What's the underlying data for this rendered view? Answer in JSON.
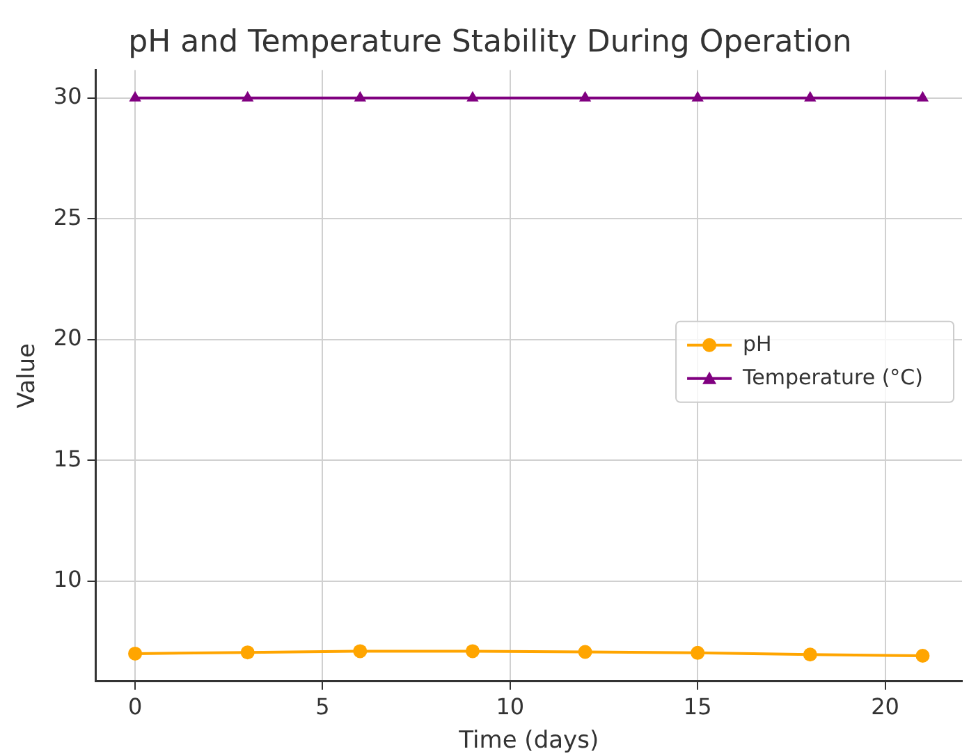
{
  "chart_data": {
    "type": "line",
    "title": "pH and Temperature Stability During Operation",
    "xlabel": "Time (days)",
    "ylabel": "Value",
    "x": [
      0,
      3,
      6,
      9,
      12,
      15,
      18,
      21
    ],
    "series": [
      {
        "name": "pH",
        "color": "#ffa500",
        "marker": "circle",
        "values": [
          7.0,
          7.05,
          7.1,
          7.1,
          7.07,
          7.03,
          6.96,
          6.91
        ]
      },
      {
        "name": "Temperature (°C)",
        "color": "#800080",
        "marker": "triangle",
        "values": [
          30,
          30,
          30,
          30,
          30,
          30,
          30,
          30
        ]
      }
    ],
    "xlim": [
      -1.05,
      22.05
    ],
    "ylim": [
      5.85,
      31.15
    ],
    "xticks": [
      0,
      5,
      10,
      15,
      20
    ],
    "yticks": [
      10,
      15,
      20,
      25,
      30
    ],
    "grid": true,
    "legend": "center right",
    "line_style": "solid"
  }
}
